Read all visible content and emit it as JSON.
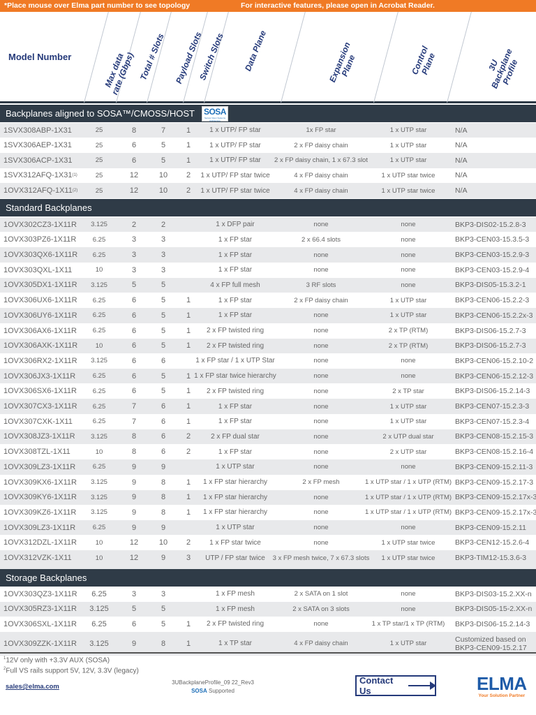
{
  "banner": {
    "left": "*Place mouse over Elma part number to see topology",
    "right": "For interactive features, please open in Acrobat Reader."
  },
  "columns": {
    "model": "Model Number",
    "rate": "Max data rate (Gbps)",
    "rate_l1": "Max data",
    "rate_l2": "rate (Gbps)",
    "total": "Total # Slots",
    "payload": "Payload Slots",
    "switch": "Switch Slots",
    "data": "Data Plane",
    "expansion_l1": "Expansion",
    "expansion_l2": "Plane",
    "control_l1": "Control",
    "control_l2": "Plane",
    "profile_l1": "3U",
    "profile_l2": "Backplane",
    "profile_l3": "Profile"
  },
  "sections": {
    "sosa": {
      "title": "Backplanes aligned to SOSA™/CMOSS/HOST",
      "logo_text": "SOSA",
      "logo_sub": "Sensor Open Systems Architecture",
      "rows": [
        {
          "model": "1SVX308ABP-1X31",
          "sup": "",
          "rate": "25",
          "total": "8",
          "payload": "7",
          "switch": "1",
          "data": "1 x UTP/ FP star",
          "expansion": "1x FP star",
          "control": "1 x UTP star",
          "profile": "N/A"
        },
        {
          "model": "1SVX306AEP-1X31",
          "sup": "",
          "rate": "25",
          "total": "6",
          "payload": "5",
          "switch": "1",
          "data": "1 x UTP/ FP star",
          "expansion": "2 x FP daisy chain",
          "control": "1 x UTP star",
          "profile": "N/A"
        },
        {
          "model": "1SVX306ACP-1X31",
          "sup": "",
          "rate": "25",
          "total": "6",
          "payload": "5",
          "switch": "1",
          "data": "1 x UTP/ FP star",
          "expansion": "2 x FP daisy chain, 1 x 67.3 slot",
          "control": "1 x UTP star",
          "profile": "N/A"
        },
        {
          "model": "1SVX312AFQ-1X31",
          "sup": "(1)",
          "rate": "25",
          "total": "12",
          "payload": "10",
          "switch": "2",
          "data": "1 x UTP/ FP star twice",
          "expansion": "4 x FP daisy chain",
          "control": "1 x UTP star twice",
          "profile": "N/A"
        },
        {
          "model": "1OVX312AFQ-1X11",
          "sup": "(2)",
          "rate": "25",
          "total": "12",
          "payload": "10",
          "switch": "2",
          "data": "1 x UTP/ FP star twice",
          "expansion": "4 x FP daisy chain",
          "control": "1 x UTP star twice",
          "profile": "N/A"
        }
      ]
    },
    "standard": {
      "title": "Standard Backplanes",
      "rows": [
        {
          "model": "1OVX302CZ3-1X11R",
          "rate": "3.125",
          "total": "2",
          "payload": "2",
          "switch": "",
          "data": "1 x DFP pair",
          "expansion": "none",
          "control": "none",
          "profile": "BKP3-DIS02-15.2.8-3"
        },
        {
          "model": "1OVX303PZ6-1X11R",
          "rate": "6.25",
          "total": "3",
          "payload": "3",
          "switch": "",
          "data": "1 x FP star",
          "expansion": "2 x 66.4 slots",
          "control": "none",
          "profile": "BKP3-CEN03-15.3.5-3"
        },
        {
          "model": "1OVX303QX6-1X11R",
          "rate": "6.25",
          "total": "3",
          "payload": "3",
          "switch": "",
          "data": "1 x FP star",
          "expansion": "none",
          "control": "none",
          "profile": "BKP3-CEN03-15.2.9-3"
        },
        {
          "model": "1OVX303QXL-1X11",
          "rate": "10",
          "total": "3",
          "payload": "3",
          "switch": "",
          "data": "1 x FP star",
          "expansion": "none",
          "control": "none",
          "profile": "BKP3-CEN03-15.2.9-4"
        },
        {
          "model": "1OVX305DX1-1X11R",
          "rate": "3.125",
          "total": "5",
          "payload": "5",
          "switch": "",
          "data": "4 x FP full mesh",
          "expansion": "3 RF slots",
          "control": "none",
          "profile": "BKP3-DIS05-15.3.2-1"
        },
        {
          "model": "1OVX306UX6-1X11R",
          "rate": "6.25",
          "total": "6",
          "payload": "5",
          "switch": "1",
          "data": "1 x FP star",
          "expansion": "2 x FP daisy chain",
          "control": "1 x UTP star",
          "profile": "BKP3-CEN06-15.2.2-3"
        },
        {
          "model": "1OVX306UY6-1X11R",
          "rate": "6.25",
          "total": "6",
          "payload": "5",
          "switch": "1",
          "data": "1 x FP star",
          "expansion": "none",
          "control": "1 x UTP star",
          "profile": "BKP3-CEN06-15.2.2x-3"
        },
        {
          "model": "1OVX306AX6-1X11R",
          "rate": "6.25",
          "total": "6",
          "payload": "5",
          "switch": "1",
          "data": "2 x FP twisted ring",
          "expansion": "none",
          "control": "2 x TP (RTM)",
          "profile": "BKP3-DIS06-15.2.7-3"
        },
        {
          "model": "1OVX306AXK-1X11R",
          "rate": "10",
          "total": "6",
          "payload": "5",
          "switch": "1",
          "data": "2 x FP twisted ring",
          "expansion": "none",
          "control": "2 x TP (RTM)",
          "profile": "BKP3-DIS06-15.2.7-3"
        },
        {
          "model": "1OVX306RX2-1X11R",
          "rate": "3.125",
          "total": "6",
          "payload": "6",
          "switch": "",
          "data": "1 x FP star / 1 x UTP Star",
          "expansion": "none",
          "control": "none",
          "profile": "BKP3-CEN06-15.2.10-2"
        },
        {
          "model": "1OVX306JX3-1X11R",
          "rate": "6.25",
          "total": "6",
          "payload": "5",
          "switch": "1",
          "data": "1 x FP star twice hierarchy",
          "expansion": "none",
          "control": "none",
          "profile": "BKP3-CEN06-15.2.12-3"
        },
        {
          "model": "1OVX306SX6-1X11R",
          "rate": "6.25",
          "total": "6",
          "payload": "5",
          "switch": "1",
          "data": "2 x FP twisted ring",
          "expansion": "none",
          "control": "2 x TP star",
          "profile": "BKP3-DIS06-15.2.14-3"
        },
        {
          "model": "1OVX307CX3-1X11R",
          "rate": "6.25",
          "total": "7",
          "payload": "6",
          "switch": "1",
          "data": "1 x FP star",
          "expansion": "none",
          "control": "1 x UTP star",
          "profile": "BKP3-CEN07-15.2.3-3"
        },
        {
          "model": "1OVX307CXK-1X11",
          "rate": "6.25",
          "total": "7",
          "payload": "6",
          "switch": "1",
          "data": "1 x FP star",
          "expansion": "none",
          "control": "1 x UTP star",
          "profile": "BKP3-CEN07-15.2.3-4"
        },
        {
          "model": "1OVX308JZ3-1X11R",
          "rate": "3.125",
          "total": "8",
          "payload": "6",
          "switch": "2",
          "data": "2 x FP dual star",
          "expansion": "none",
          "control": "2 x UTP dual star",
          "profile": "BKP3-CEN08-15.2.15-3"
        },
        {
          "model": "1OVX308TZL-1X11",
          "rate": "10",
          "total": "8",
          "payload": "6",
          "switch": "2",
          "data": "1 x FP star",
          "expansion": "none",
          "control": "2 x UTP star",
          "profile": "BKP3-CEN08-15.2.16-4"
        },
        {
          "model": "1OVX309LZ3-1X11R",
          "rate": "6.25",
          "total": "9",
          "payload": "9",
          "switch": "",
          "data": "1 x UTP star",
          "expansion": "none",
          "control": "none",
          "profile": "BKP3-CEN09-15.2.11-3"
        },
        {
          "model": "1OVX309KX6-1X11R",
          "rate": "3.125",
          "total": "9",
          "payload": "8",
          "switch": "1",
          "data": "1 x FP star hierarchy",
          "expansion": "2 x FP mesh",
          "control": "1 x UTP star / 1 x UTP (RTM)",
          "profile": "BKP3-CEN09-15.2.17-3"
        },
        {
          "model": "1OVX309KY6-1X11R",
          "rate": "3.125",
          "total": "9",
          "payload": "8",
          "switch": "1",
          "data": "1 x FP star hierarchy",
          "expansion": "none",
          "control": "1 x UTP star / 1 x UTP (RTM)",
          "profile": "BKP3-CEN09-15.2.17x-3"
        },
        {
          "model": "1OVX309KZ6-1X11R",
          "rate": "3.125",
          "total": "9",
          "payload": "8",
          "switch": "1",
          "data": "1 x FP star hierarchy",
          "expansion": "none",
          "control": "1 x UTP star / 1 x UTP (RTM)",
          "profile": "BKP3-CEN09-15.2.17x-3"
        },
        {
          "model": "1OVX309LZ3-1X11R",
          "rate": "6.25",
          "total": "9",
          "payload": "9",
          "switch": "",
          "data": "1 x UTP star",
          "expansion": "none",
          "control": "none",
          "profile": "BKP3-CEN09-15.2.11"
        },
        {
          "model": "1OVX312DZL-1X11R",
          "rate": "10",
          "total": "12",
          "payload": "10",
          "switch": "2",
          "data": "1 x FP star twice",
          "expansion": "none",
          "control": "1 x UTP star twice",
          "profile": "BKP3-CEN12-15.2.6-4"
        },
        {
          "model": "1OVX312VZK-1X11",
          "rate": "10",
          "total": "12",
          "payload": "9",
          "switch": "3",
          "data": "UTP / FP star twice",
          "expansion": "3 x FP mesh twice, 7 x 67.3 slots",
          "control": "1 x UTP star twice",
          "profile": "BKP3-TIM12-15.3.6-3"
        }
      ]
    },
    "storage": {
      "title": "Storage Backplanes",
      "rows": [
        {
          "model": "1OVX303QZ3-1X11R",
          "rate": "6.25",
          "total": "3",
          "payload": "3",
          "switch": "",
          "data": "1 x FP mesh",
          "expansion": "2 x SATA on 1 slot",
          "control": "none",
          "profile": "BKP3-DIS03-15.2.XX-n"
        },
        {
          "model": "1OVX305RZ3-1X11R",
          "rate": "3.125",
          "total": "5",
          "payload": "5",
          "switch": "",
          "data": "1 x FP mesh",
          "expansion": "2 x SATA on 3 slots",
          "control": "none",
          "profile": "BKP3-DIS05-15-2.XX-n"
        },
        {
          "model": "1OVX306SXL-1X11R",
          "rate": "6.25",
          "total": "6",
          "payload": "5",
          "switch": "1",
          "data": "2 x FP twisted ring",
          "expansion": "none",
          "control": "1 x TP star/1 x TP (RTM)",
          "profile": "BKP3-DIS06-15.2.14-3"
        },
        {
          "model": "1OVX309ZZK-1X11R",
          "rate": "3.125",
          "total": "9",
          "payload": "8",
          "switch": "1",
          "data": "1 x TP star",
          "expansion": "4 x FP daisy chain",
          "control": "1 x UTP star",
          "profile": "Customized based on BKP3-CEN09-15.2.17"
        }
      ]
    }
  },
  "footer": {
    "note1_mark": "1",
    "note1": "12V only with +3.3V AUX (SOSA)",
    "note2_mark": "2",
    "note2": "Full VS rails support 5V, 12V, 3.3V (legacy)",
    "email": "sales@elma.com",
    "doc_id": "3UBackplaneProfile_09 22_Rev3",
    "sosa_label": "SOSA",
    "supported": "Supported",
    "contact_label": "Contact Us",
    "brand": "ELMA",
    "tagline": "Your Solution Partner"
  },
  "colors": {
    "banner": "#f07a25",
    "section_bar": "#2f3b47",
    "header_text": "#253a7a",
    "row_alt": "#e8e9eb",
    "brand_blue": "#1e5ba8"
  }
}
